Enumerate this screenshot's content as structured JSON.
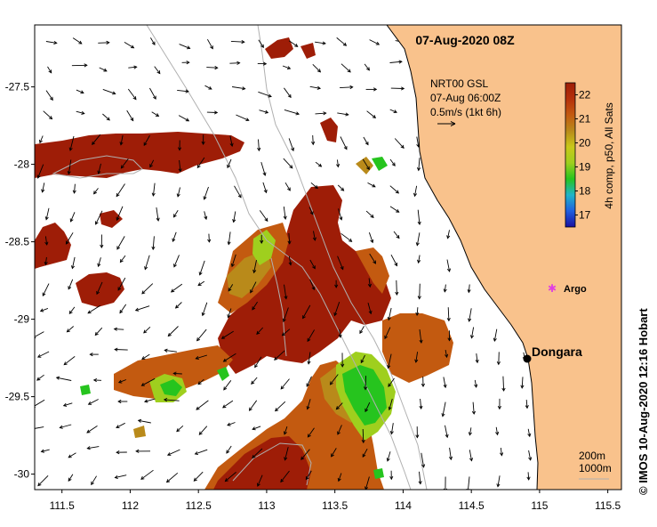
{
  "map": {
    "title": "07-Aug-2020 08Z",
    "lon_range": [
      111.3,
      115.6
    ],
    "lat_range": [
      -30.1,
      -27.1
    ],
    "x_ticks": [
      "111.5",
      "112",
      "112.5",
      "113",
      "113.5",
      "114",
      "114.5",
      "115",
      "115.5"
    ],
    "x_tick_values": [
      111.5,
      112,
      112.5,
      113,
      113.5,
      114,
      114.5,
      115,
      115.5
    ],
    "y_ticks": [
      "-27.5",
      "-28",
      "-28.5",
      "-29",
      "-29.5",
      "-30"
    ],
    "y_tick_values": [
      -27.5,
      -28,
      -28.5,
      -29,
      -29.5,
      -30
    ],
    "colors": {
      "land": "#f9c28c",
      "sst_hot": "#9e1d07",
      "sst_warm": "#c35a10",
      "sst_mid": "#b98a1a",
      "sst_cool": "#9fcf1e",
      "sst_green": "#26c41e",
      "contour": "#b0b0b0"
    }
  },
  "legend": {
    "currents_line1": "NRT00 GSL",
    "currents_line2": "07-Aug 06:00Z",
    "currents_line3": "0.5m/s (1kt 6h)",
    "currents_reference_speed_ms": 0.5
  },
  "colorbar": {
    "label": "4h comp, p50, All Sats",
    "min": 16.5,
    "max": 22.5,
    "ticks": [
      "22",
      "21",
      "20",
      "19",
      "18",
      "17"
    ],
    "tick_values": [
      22,
      21,
      20,
      19,
      18,
      17
    ],
    "stops": [
      "#9e1d07",
      "#b5300a",
      "#c35a10",
      "#b98a1a",
      "#c8c81a",
      "#9fcf1e",
      "#26c41e",
      "#20b4c8",
      "#2060e0",
      "#1a10a0"
    ]
  },
  "places": {
    "dongara": {
      "label": "Dongara",
      "lon": 114.93,
      "lat": -29.25
    },
    "argo": {
      "label": "Argo",
      "lon": 115.07,
      "lat": -28.88,
      "color": "#e040e0"
    }
  },
  "contours": {
    "depth1": "200m",
    "depth2": "1000m"
  },
  "credit": "© IMOS 10-Aug-2020 12:16 Hobart"
}
